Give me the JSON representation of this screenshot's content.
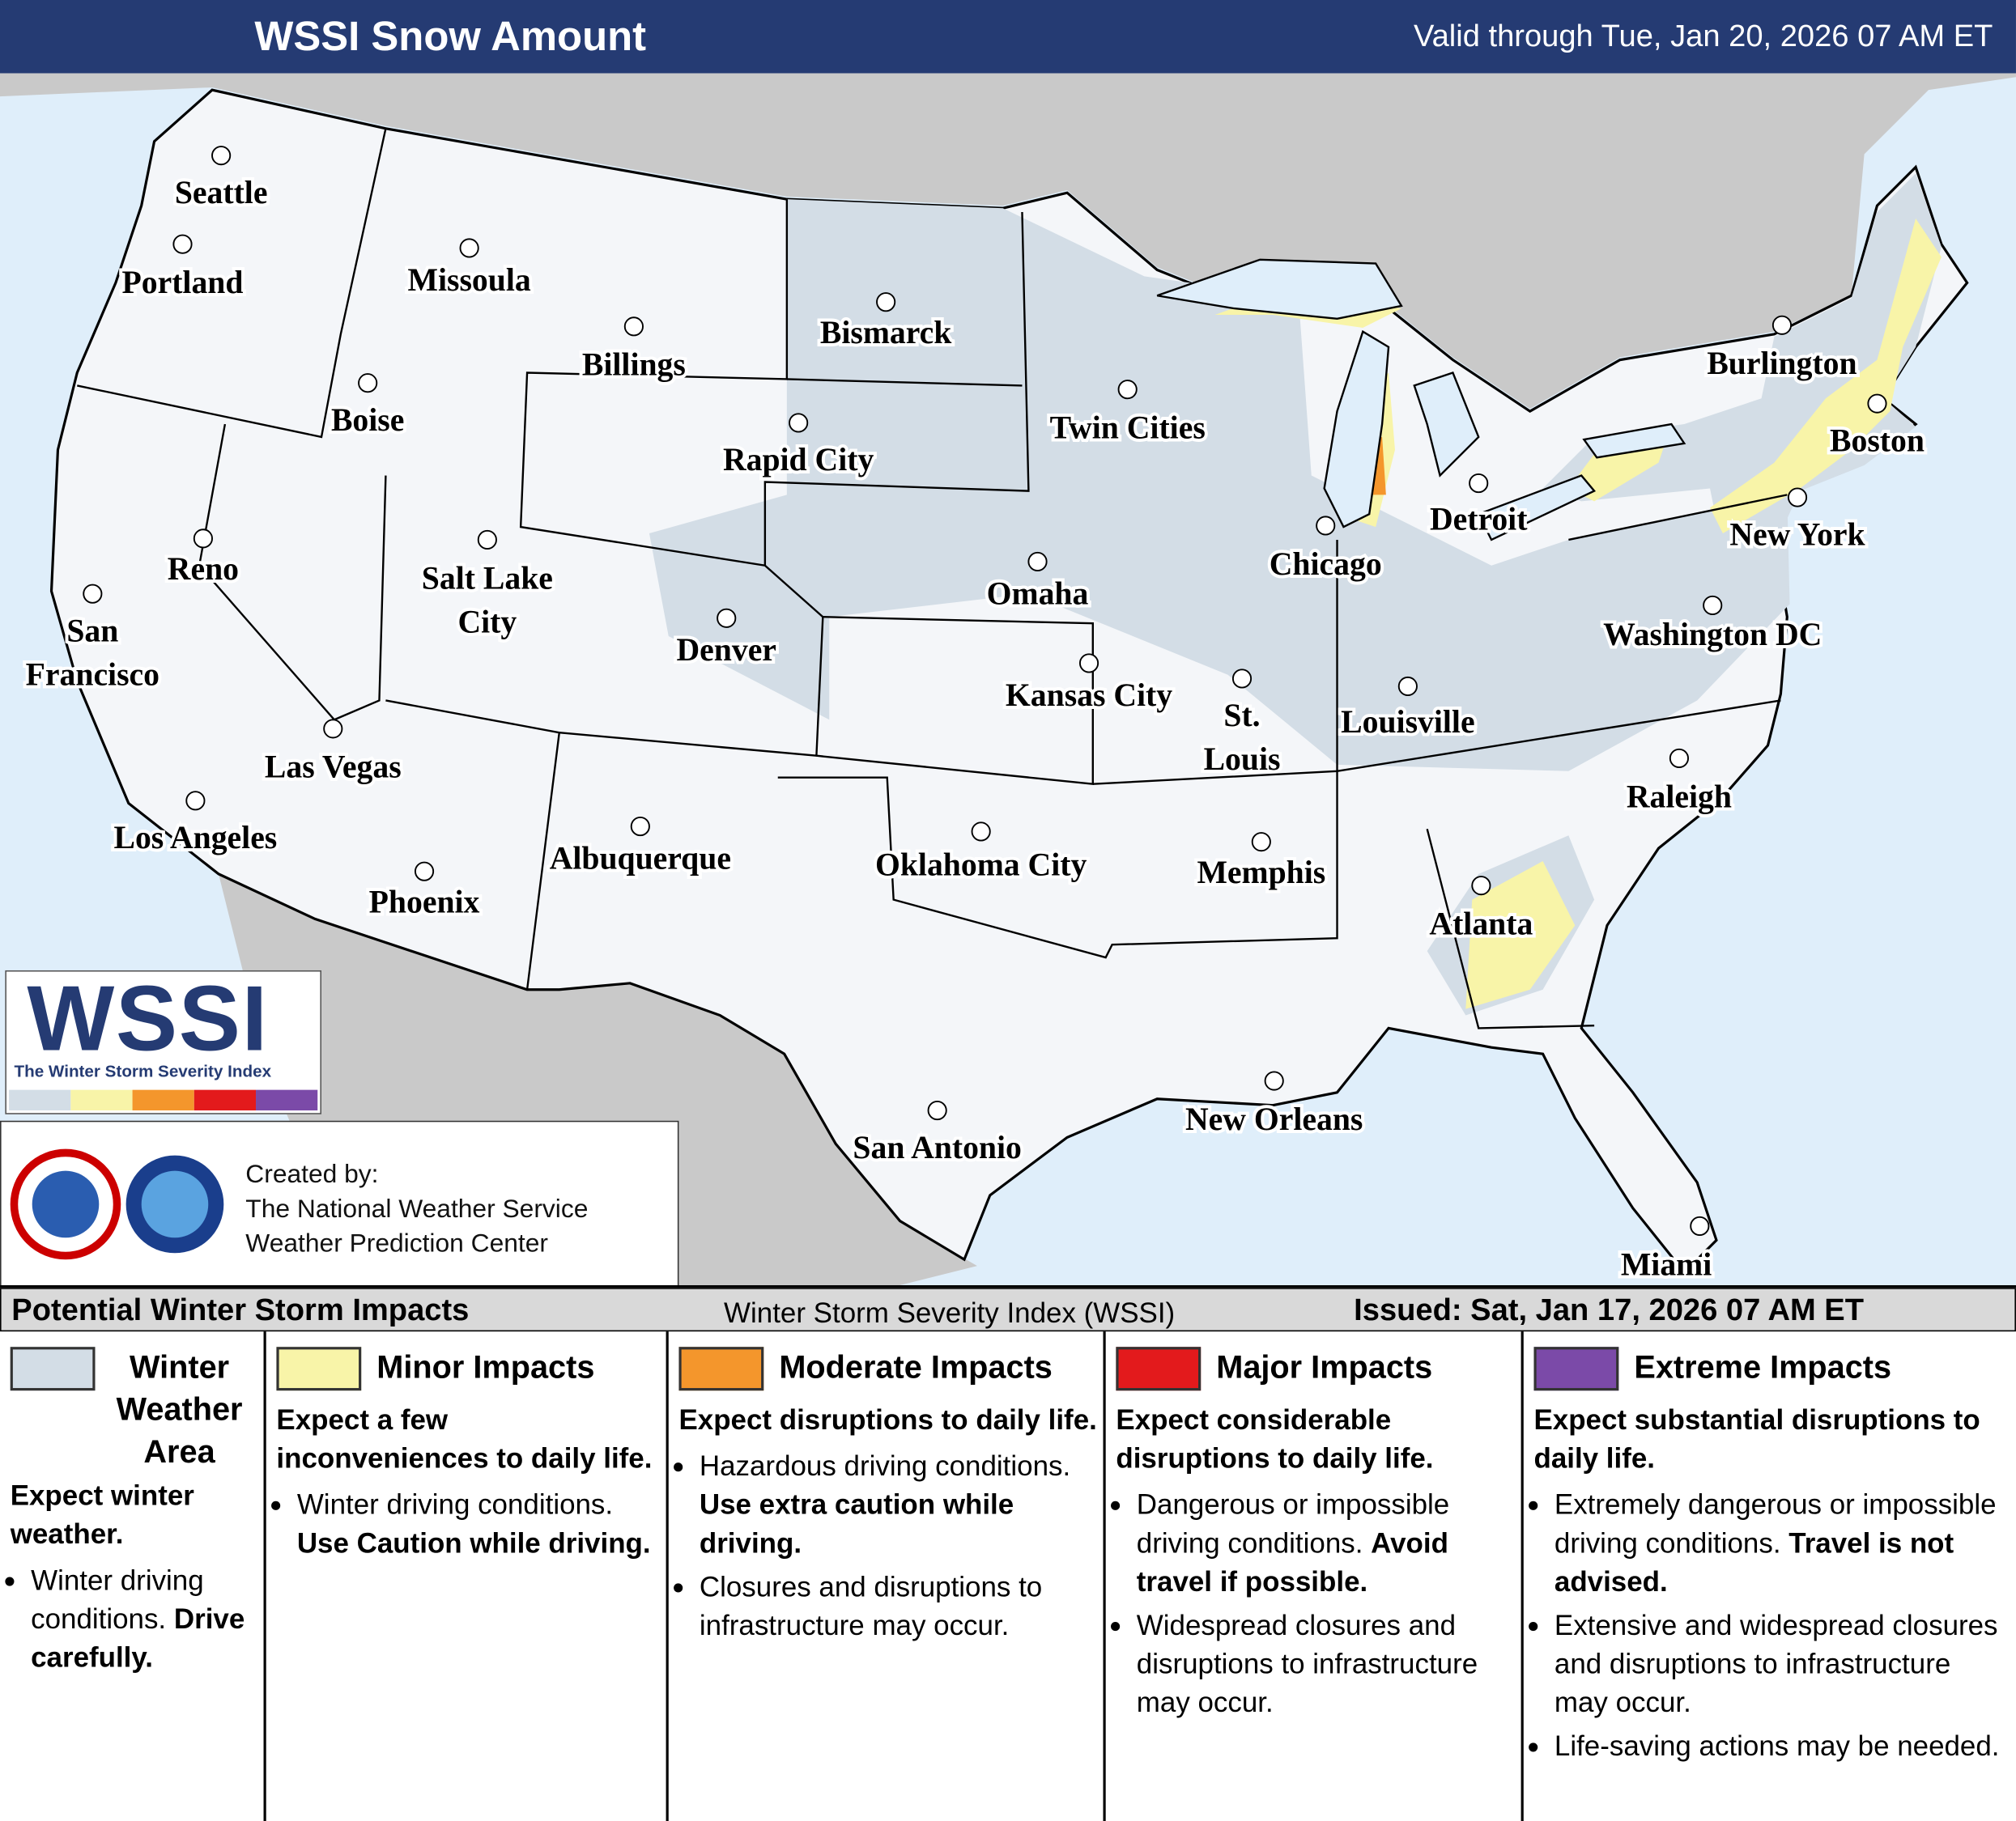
{
  "header": {
    "title": "WSSI Snow Amount",
    "valid": "Valid through Tue, Jan 20, 2026 07 AM ET"
  },
  "cities": [
    {
      "label": [
        "Seattle"
      ]
    },
    {
      "label": [
        "Portland"
      ]
    },
    {
      "label": [
        "Missoula"
      ]
    },
    {
      "label": [
        "Billings"
      ]
    },
    {
      "label": [
        "Bismarck"
      ]
    },
    {
      "label": [
        "Boise"
      ]
    },
    {
      "label": [
        "Rapid City"
      ]
    },
    {
      "label": [
        "Twin Cities"
      ]
    },
    {
      "label": [
        "Burlington"
      ]
    },
    {
      "label": [
        "Boston"
      ]
    },
    {
      "label": [
        "Detroit"
      ]
    },
    {
      "label": [
        "New York"
      ]
    },
    {
      "label": [
        "Chicago"
      ]
    },
    {
      "label": [
        "Reno"
      ]
    },
    {
      "label": [
        "Salt Lake",
        "City"
      ]
    },
    {
      "label": [
        "San",
        "Francisco"
      ]
    },
    {
      "label": [
        "Omaha"
      ]
    },
    {
      "label": [
        "Denver"
      ]
    },
    {
      "label": [
        "Washington DC"
      ]
    },
    {
      "label": [
        "Kansas City"
      ]
    },
    {
      "label": [
        "St.",
        "Louis"
      ]
    },
    {
      "label": [
        "Louisville"
      ]
    },
    {
      "label": [
        "Las Vegas"
      ]
    },
    {
      "label": [
        "Los Angeles"
      ]
    },
    {
      "label": [
        "Raleigh"
      ]
    },
    {
      "label": [
        "Albuquerque"
      ]
    },
    {
      "label": [
        "Oklahoma City"
      ]
    },
    {
      "label": [
        "Memphis"
      ]
    },
    {
      "label": [
        "Phoenix"
      ]
    },
    {
      "label": [
        "Atlanta"
      ]
    },
    {
      "label": [
        "New Orleans"
      ]
    },
    {
      "label": [
        "San Antonio"
      ]
    },
    {
      "label": [
        "Miami"
      ]
    }
  ],
  "logo": {
    "title": "WSSI",
    "subtitle": "The Winter Storm Severity Index"
  },
  "credits": [
    "Created by:",
    "The National Weather Service",
    "Weather Prediction Center"
  ],
  "legend": {
    "title": "Potential Winter Storm Impacts",
    "subtitle": "Winter Storm Severity Index (WSSI)",
    "issued": "Issued: Sat, Jan 17, 2026 07 AM ET",
    "items": [
      {
        "name": "Winter Weather Area",
        "color": "#d3dde6",
        "headline": "Expect winter weather.",
        "bullets": [
          {
            "text": "Winter driving conditions.",
            "emphasis": "Drive carefully."
          }
        ]
      },
      {
        "name": "Minor Impacts",
        "color": "#f8f4a8",
        "headline": "Expect a few inconveniences to daily life.",
        "bullets": [
          {
            "text": "Winter driving conditions.",
            "emphasis": "Use Caution while driving."
          }
        ]
      },
      {
        "name": "Moderate Impacts",
        "color": "#f4962c",
        "headline": "Expect disruptions to daily life.",
        "bullets": [
          {
            "text": "Hazardous driving conditions.",
            "emphasis": "Use extra caution while driving."
          },
          {
            "text": "Closures and disruptions to infrastructure may occur."
          }
        ]
      },
      {
        "name": "Major Impacts",
        "color": "#e31a1c",
        "headline": "Expect considerable disruptions to daily life.",
        "bullets": [
          {
            "text": "Dangerous or impossible driving conditions.",
            "emphasis": "Avoid travel if possible."
          },
          {
            "text": "Widespread closures and disruptions to infrastructure may occur."
          }
        ]
      },
      {
        "name": "Extreme Impacts",
        "color": "#7b4aa8",
        "headline": "Expect substantial disruptions to daily life.",
        "bullets": [
          {
            "text": "Extremely dangerous or impossible driving conditions.",
            "emphasis": "Travel is not advised."
          },
          {
            "text": "Extensive and widespread closures and disruptions to infrastructure may occur."
          },
          {
            "text": "Life-saving actions may be needed."
          }
        ]
      }
    ]
  }
}
